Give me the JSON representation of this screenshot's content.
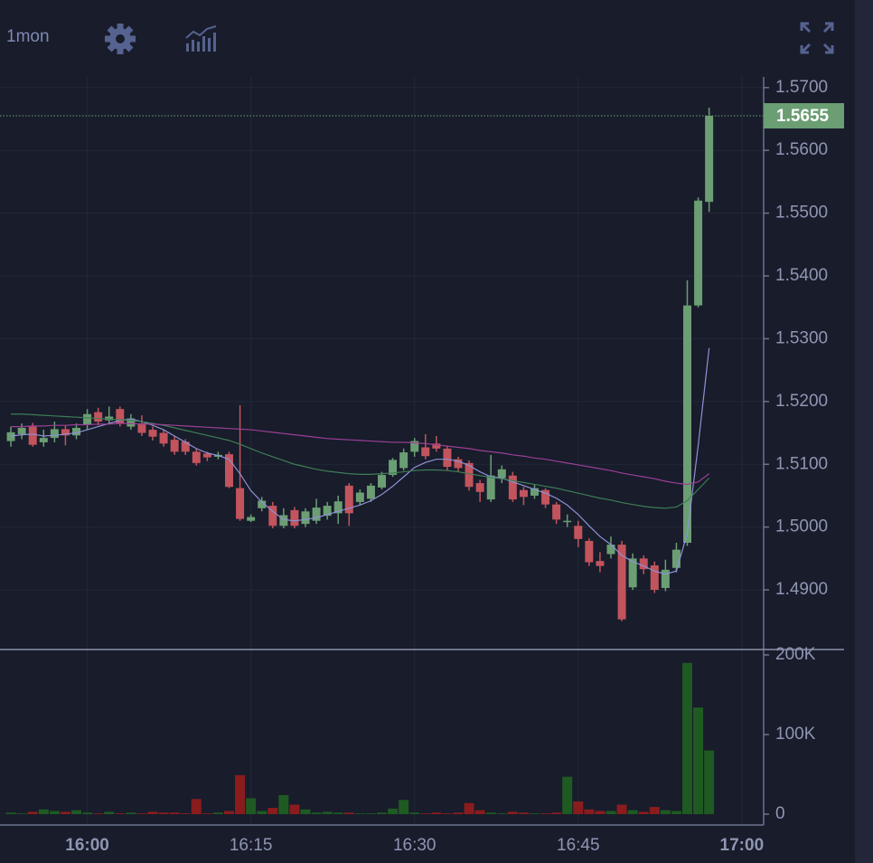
{
  "toolbar": {
    "interval": "1mon"
  },
  "chart_data": [
    {
      "type": "candlestick",
      "x": [
        "15:53",
        "15:54",
        "15:55",
        "15:56",
        "15:57",
        "15:58",
        "15:59",
        "16:00",
        "16:01",
        "16:02",
        "16:03",
        "16:04",
        "16:05",
        "16:06",
        "16:07",
        "16:08",
        "16:09",
        "16:10",
        "16:11",
        "16:12",
        "16:13",
        "16:14",
        "16:15",
        "16:16",
        "16:17",
        "16:18",
        "16:19",
        "16:20",
        "16:21",
        "16:22",
        "16:23",
        "16:24",
        "16:25",
        "16:26",
        "16:27",
        "16:28",
        "16:29",
        "16:30",
        "16:31",
        "16:32",
        "16:33",
        "16:34",
        "16:35",
        "16:36",
        "16:37",
        "16:38",
        "16:39",
        "16:40",
        "16:41",
        "16:42",
        "16:43",
        "16:44",
        "16:45",
        "16:46",
        "16:47",
        "16:48",
        "16:49",
        "16:50",
        "16:51",
        "16:52",
        "16:53",
        "16:54",
        "16:55",
        "16:56",
        "16:57"
      ],
      "open": [
        1.5137,
        1.5148,
        1.516,
        1.5135,
        1.5142,
        1.5156,
        1.5146,
        1.5163,
        1.5183,
        1.517,
        1.5188,
        1.516,
        1.5165,
        1.5155,
        1.515,
        1.5139,
        1.5136,
        1.512,
        1.5117,
        1.5112,
        1.5116,
        1.5062,
        1.501,
        1.503,
        1.5034,
        1.5002,
        1.5027,
        1.5005,
        1.501,
        1.5018,
        1.5022,
        1.5066,
        1.504,
        1.5045,
        1.5063,
        1.5083,
        1.5094,
        1.512,
        1.5127,
        1.5133,
        1.5125,
        1.5108,
        1.5102,
        1.507,
        1.5044,
        1.5078,
        1.5082,
        1.5059,
        1.505,
        1.5059,
        1.5036,
        1.5008,
        1.5002,
        1.4978,
        1.4946,
        1.4957,
        1.4972,
        1.4904,
        1.495,
        1.4939,
        1.4903,
        1.4935,
        1.4975,
        1.5353,
        1.5518
      ],
      "high": [
        1.516,
        1.5165,
        1.5166,
        1.5155,
        1.5168,
        1.5162,
        1.5165,
        1.5188,
        1.519,
        1.5192,
        1.5192,
        1.518,
        1.5178,
        1.516,
        1.5155,
        1.5145,
        1.514,
        1.5125,
        1.512,
        1.512,
        1.512,
        1.5194,
        1.502,
        1.5048,
        1.504,
        1.503,
        1.5032,
        1.503,
        1.5045,
        1.504,
        1.505,
        1.507,
        1.506,
        1.507,
        1.5088,
        1.511,
        1.5125,
        1.5142,
        1.5148,
        1.5145,
        1.513,
        1.5112,
        1.5106,
        1.5075,
        1.5115,
        1.5098,
        1.5088,
        1.5064,
        1.5068,
        1.5062,
        1.504,
        1.502,
        1.501,
        1.4982,
        1.496,
        1.4985,
        1.4978,
        1.4958,
        1.4955,
        1.4945,
        1.4948,
        1.4975,
        1.5393,
        1.5525,
        1.5668
      ],
      "low": [
        1.5128,
        1.514,
        1.5128,
        1.5128,
        1.5135,
        1.513,
        1.514,
        1.5155,
        1.5162,
        1.5165,
        1.516,
        1.5155,
        1.5145,
        1.5138,
        1.5128,
        1.5115,
        1.5115,
        1.5098,
        1.5105,
        1.5108,
        1.5062,
        1.501,
        1.5008,
        1.5025,
        1.4998,
        1.4998,
        1.4998,
        1.5,
        1.5005,
        1.5012,
        1.5005,
        1.5002,
        1.5035,
        1.504,
        1.506,
        1.508,
        1.509,
        1.5112,
        1.5108,
        1.512,
        1.509,
        1.5088,
        1.5058,
        1.504,
        1.504,
        1.507,
        1.504,
        1.5035,
        1.5045,
        1.503,
        1.5005,
        1.5,
        1.4968,
        1.4938,
        1.4928,
        1.495,
        1.485,
        1.49,
        1.4925,
        1.4895,
        1.4898,
        1.4928,
        1.497,
        1.535,
        1.5502
      ],
      "close": [
        1.5151,
        1.5158,
        1.5131,
        1.5142,
        1.5156,
        1.5146,
        1.5158,
        1.518,
        1.5168,
        1.5176,
        1.5165,
        1.5173,
        1.515,
        1.5144,
        1.5133,
        1.512,
        1.512,
        1.5102,
        1.5111,
        1.5115,
        1.5064,
        1.5013,
        1.5016,
        1.5042,
        1.5002,
        1.5019,
        1.5002,
        1.5025,
        1.5031,
        1.5034,
        1.5041,
        1.5022,
        1.5055,
        1.5066,
        1.5083,
        1.5107,
        1.5119,
        1.5137,
        1.5113,
        1.5125,
        1.5096,
        1.5094,
        1.5064,
        1.5056,
        1.5082,
        1.5092,
        1.5044,
        1.5048,
        1.5062,
        1.5036,
        1.5012,
        1.501,
        1.4981,
        1.4944,
        1.4938,
        1.4972,
        1.4853,
        1.495,
        1.4933,
        1.49,
        1.4932,
        1.4964,
        1.5353,
        1.552,
        1.5655
      ],
      "series": [
        {
          "color": "#8e92d6",
          "values": [
            1.5145,
            1.5147,
            1.5148,
            1.5145,
            1.5146,
            1.5148,
            1.515,
            1.5155,
            1.516,
            1.5165,
            1.517,
            1.5172,
            1.5168,
            1.5162,
            1.5155,
            1.5145,
            1.5135,
            1.5125,
            1.5118,
            1.5114,
            1.5108,
            1.5085,
            1.5058,
            1.504,
            1.5025,
            1.5012,
            1.501,
            1.5012,
            1.5015,
            1.502,
            1.5025,
            1.503,
            1.5035,
            1.5042,
            1.5052,
            1.5065,
            1.508,
            1.5095,
            1.5103,
            1.5108,
            1.5108,
            1.5105,
            1.5098,
            1.5088,
            1.508,
            1.5078,
            1.5072,
            1.5066,
            1.506,
            1.5054,
            1.5046,
            1.5035,
            1.502,
            1.5002,
            1.4985,
            1.4972,
            1.4955,
            1.4945,
            1.4938,
            1.493,
            1.4925,
            1.493,
            1.499,
            1.513,
            1.5285
          ]
        },
        {
          "color": "#3f7d55",
          "values": [
            1.518,
            1.518,
            1.5179,
            1.5178,
            1.5177,
            1.5176,
            1.5175,
            1.5174,
            1.5173,
            1.5172,
            1.5171,
            1.517,
            1.5168,
            1.5165,
            1.5162,
            1.5158,
            1.5154,
            1.515,
            1.5146,
            1.5142,
            1.5138,
            1.5132,
            1.5125,
            1.5118,
            1.5112,
            1.5106,
            1.51,
            1.5096,
            1.5092,
            1.5089,
            1.5087,
            1.5085,
            1.5084,
            1.5084,
            1.5085,
            1.5086,
            1.5088,
            1.509,
            1.5091,
            1.5091,
            1.509,
            1.5088,
            1.5085,
            1.5082,
            1.5079,
            1.5077,
            1.5074,
            1.5071,
            1.5068,
            1.5065,
            1.5062,
            1.5058,
            1.5054,
            1.505,
            1.5046,
            1.5043,
            1.5039,
            1.5036,
            1.5033,
            1.5031,
            1.503,
            1.5032,
            1.5042,
            1.506,
            1.5078
          ]
        },
        {
          "color": "#9b3f95",
          "values": [
            1.516,
            1.516,
            1.5161,
            1.5161,
            1.5162,
            1.5162,
            1.5163,
            1.5163,
            1.5164,
            1.5164,
            1.5165,
            1.5165,
            1.5164,
            1.5164,
            1.5163,
            1.5162,
            1.5161,
            1.516,
            1.5159,
            1.5158,
            1.5157,
            1.5156,
            1.5155,
            1.5153,
            1.5151,
            1.5149,
            1.5147,
            1.5145,
            1.5143,
            1.5141,
            1.514,
            1.5139,
            1.5138,
            1.5137,
            1.5136,
            1.5135,
            1.5135,
            1.5134,
            1.5133,
            1.5131,
            1.5129,
            1.5127,
            1.5125,
            1.5122,
            1.512,
            1.5118,
            1.5115,
            1.5113,
            1.511,
            1.5108,
            1.5105,
            1.5102,
            1.5099,
            1.5096,
            1.5093,
            1.509,
            1.5086,
            1.5083,
            1.508,
            1.5077,
            1.5073,
            1.507,
            1.5068,
            1.5072,
            1.5085
          ]
        }
      ],
      "up_color": "#6b9e73",
      "down_color": "#c2545d",
      "last_price": 1.5655,
      "xlim": [
        "15:52",
        "17:02"
      ],
      "ylim": [
        1.4805,
        1.5717
      ],
      "yticks": [
        {
          "value": 1.49,
          "label": "1.4900"
        },
        {
          "value": 1.5,
          "label": "1.5000"
        },
        {
          "value": 1.51,
          "label": "1.5100"
        },
        {
          "value": 1.52,
          "label": "1.5200"
        },
        {
          "value": 1.53,
          "label": "1.5300"
        },
        {
          "value": 1.54,
          "label": "1.5400"
        },
        {
          "value": 1.55,
          "label": "1.5500"
        },
        {
          "value": 1.56,
          "label": "1.5600"
        },
        {
          "value": 1.57,
          "label": "1.5700"
        }
      ],
      "grid": true
    },
    {
      "type": "bar",
      "values": [
        2000,
        1000,
        3000,
        6000,
        4000,
        3000,
        5000,
        2000,
        1000,
        3000,
        1000,
        2000,
        1000,
        3000,
        2000,
        2000,
        1000,
        19000,
        1000,
        2000,
        4000,
        49000,
        20000,
        4000,
        8000,
        24000,
        12000,
        6000,
        2000,
        3000,
        2000,
        2000,
        1000,
        1000,
        2000,
        7000,
        18000,
        2000,
        1000,
        2000,
        1000,
        2000,
        14000,
        5000,
        2000,
        1000,
        3000,
        2000,
        1000,
        1000,
        2000,
        47000,
        16000,
        6000,
        4000,
        4000,
        12000,
        5000,
        3000,
        9000,
        5000,
        4000,
        190000,
        134000,
        80000
      ],
      "up_color": "#1f5a22",
      "down_color": "#8a1c1e",
      "ylim": [
        -13600,
        206800
      ],
      "yticks": [
        0,
        {
          "value": 100000,
          "label": "100K"
        },
        {
          "value": 200000,
          "label": "200K"
        }
      ],
      "xticks": [
        "16:00",
        "16:15",
        "16:30",
        "16:45",
        "17:00"
      ],
      "grid": true
    }
  ]
}
